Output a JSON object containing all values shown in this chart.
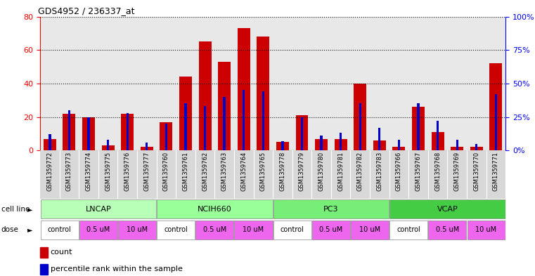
{
  "title": "GDS4952 / 236337_at",
  "samples": [
    "GSM1359772",
    "GSM1359773",
    "GSM1359774",
    "GSM1359775",
    "GSM1359776",
    "GSM1359777",
    "GSM1359760",
    "GSM1359761",
    "GSM1359762",
    "GSM1359763",
    "GSM1359764",
    "GSM1359765",
    "GSM1359778",
    "GSM1359779",
    "GSM1359780",
    "GSM1359781",
    "GSM1359782",
    "GSM1359783",
    "GSM1359766",
    "GSM1359767",
    "GSM1359768",
    "GSM1359769",
    "GSM1359770",
    "GSM1359771"
  ],
  "red_values": [
    7,
    22,
    20,
    3,
    22,
    2,
    17,
    44,
    65,
    53,
    73,
    68,
    5,
    21,
    7,
    7,
    40,
    6,
    2,
    26,
    11,
    2,
    2,
    52
  ],
  "blue_pct": [
    12,
    30,
    25,
    8,
    28,
    6,
    20,
    35,
    33,
    40,
    45,
    44,
    7,
    25,
    11,
    13,
    35,
    17,
    8,
    35,
    22,
    8,
    5,
    42
  ],
  "red_color": "#cc0000",
  "blue_color": "#0000cc",
  "ylim_left": [
    0,
    80
  ],
  "ylim_right": [
    0,
    100
  ],
  "yticks_left": [
    0,
    20,
    40,
    60,
    80
  ],
  "yticks_right": [
    0,
    25,
    50,
    75,
    100
  ],
  "ytick_right_labels": [
    "0%",
    "25%",
    "50%",
    "75%",
    "100%"
  ],
  "cell_lines": [
    {
      "label": "LNCAP",
      "start": 0,
      "end": 5,
      "color": "#b8ffb8"
    },
    {
      "label": "NCIH660",
      "start": 6,
      "end": 11,
      "color": "#99ff99"
    },
    {
      "label": "PC3",
      "start": 12,
      "end": 17,
      "color": "#77ee77"
    },
    {
      "label": "VCAP",
      "start": 18,
      "end": 23,
      "color": "#44cc44"
    }
  ],
  "dose_groups": [
    {
      "label": "control",
      "start": 0,
      "end": 1,
      "color": "#ffffff"
    },
    {
      "label": "0.5 uM",
      "start": 2,
      "end": 3,
      "color": "#ee66ee"
    },
    {
      "label": "10 uM",
      "start": 4,
      "end": 5,
      "color": "#ee66ee"
    },
    {
      "label": "control",
      "start": 6,
      "end": 7,
      "color": "#ffffff"
    },
    {
      "label": "0.5 uM",
      "start": 8,
      "end": 9,
      "color": "#ee66ee"
    },
    {
      "label": "10 uM",
      "start": 10,
      "end": 11,
      "color": "#ee66ee"
    },
    {
      "label": "control",
      "start": 12,
      "end": 13,
      "color": "#ffffff"
    },
    {
      "label": "0.5 uM",
      "start": 14,
      "end": 15,
      "color": "#ee66ee"
    },
    {
      "label": "10 uM",
      "start": 16,
      "end": 17,
      "color": "#ee66ee"
    },
    {
      "label": "control",
      "start": 18,
      "end": 19,
      "color": "#ffffff"
    },
    {
      "label": "0.5 uM",
      "start": 20,
      "end": 21,
      "color": "#ee66ee"
    },
    {
      "label": "10 uM",
      "start": 22,
      "end": 23,
      "color": "#ee66ee"
    }
  ],
  "xtick_bg_color": "#d8d8d8",
  "bar_area_bg": "#e8e8e8"
}
